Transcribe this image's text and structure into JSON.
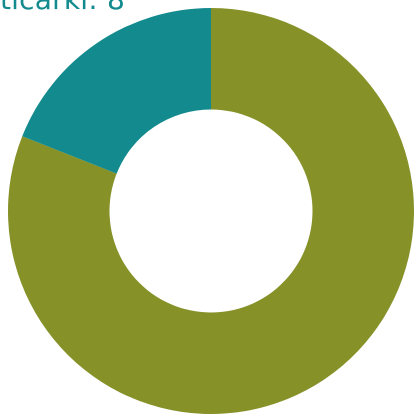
{
  "chart_data": {
    "type": "pie",
    "title": "ticarki: 8",
    "categories": [
      "",
      ""
    ],
    "values": [
      81,
      19
    ],
    "colors": [
      "#869128",
      "#138a8e"
    ],
    "start_angle_deg": 0,
    "donut": true,
    "hole_ratio": 0.5,
    "legend": "none"
  }
}
